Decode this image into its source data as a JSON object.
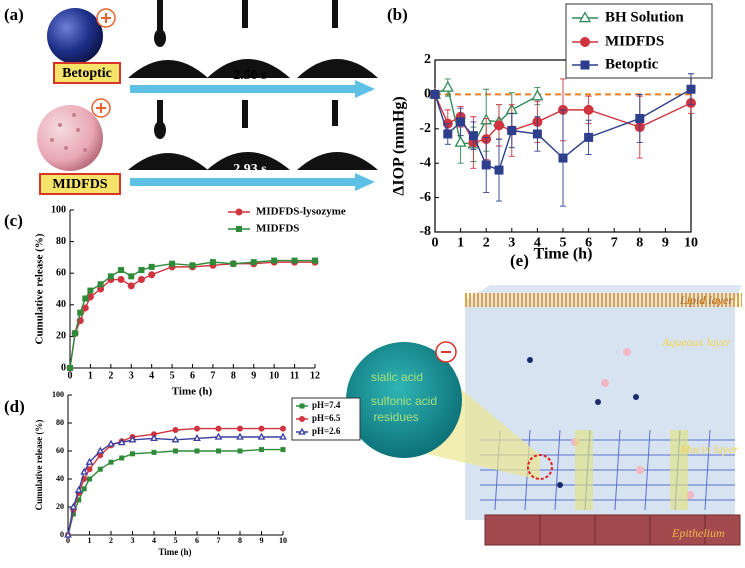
{
  "panels": {
    "a": {
      "label": "(a)",
      "drug_1": "Betoptic",
      "time_1": "2.50 s",
      "drug_2": "MIDFDS",
      "time_2": "2.93 s"
    },
    "e": {
      "label": "(e)",
      "lipid": "Lipid layer",
      "aqueous": "Aqueous layer",
      "mucin": "Mucin layer",
      "epithelium": "Epithelium",
      "circle_1": "sialic acid",
      "circle_2": "sulfonic acid",
      "circle_3": "residues"
    }
  },
  "chart_data": [
    {
      "type": "line",
      "panel": "(b)",
      "x_label": "Time (h)",
      "y_label": "ΔIOP (mmHg)",
      "axes_box": true,
      "xlim": [
        0,
        10
      ],
      "ylim": [
        -8,
        2
      ],
      "xticks": [
        0,
        1,
        2,
        3,
        4,
        5,
        6,
        7,
        8,
        9,
        10
      ],
      "yticks": [
        -8,
        -6,
        -4,
        -2,
        0,
        2
      ],
      "reference_line": {
        "value": 0,
        "color": "#ee7d22"
      },
      "series": [
        {
          "name": "BH Solution",
          "color": "#2e8b57",
          "marker": "triangle",
          "x": [
            0,
            0.5,
            1,
            1.5,
            2,
            2.5,
            3,
            4
          ],
          "values": [
            0,
            0.4,
            -2.8,
            -2.9,
            -1.5,
            -1.6,
            -0.9,
            -0.1
          ],
          "errors": [
            0.2,
            0.5,
            1.2,
            1.0,
            1.8,
            1.0,
            1.0,
            0.5
          ]
        },
        {
          "name": "MIDFDS",
          "color": "#d0343f",
          "marker": "circle",
          "x": [
            0,
            0.5,
            1,
            1.5,
            2,
            2.5,
            3,
            4,
            5,
            6,
            8,
            10
          ],
          "values": [
            0,
            -1.7,
            -1.3,
            -2.8,
            -2.6,
            -1.8,
            -2.1,
            -1.6,
            -0.9,
            -0.9,
            -1.9,
            -0.5
          ],
          "errors": [
            0.2,
            0.8,
            0.6,
            1.5,
            1.2,
            1.2,
            1.5,
            1.2,
            1.8,
            0.8,
            1.8,
            0.6
          ]
        },
        {
          "name": "Betoptic",
          "color": "#2d3f8c",
          "marker": "square",
          "x": [
            0,
            0.5,
            1,
            1.5,
            2,
            2.5,
            3,
            4,
            5,
            6,
            8,
            10
          ],
          "values": [
            0,
            -2.3,
            -1.6,
            -2.4,
            -4.1,
            -4.4,
            -2.1,
            -2.3,
            -3.7,
            -2.5,
            -1.4,
            0.3
          ],
          "errors": [
            0.2,
            0.6,
            0.8,
            0.8,
            1.6,
            1.8,
            1.0,
            1.0,
            2.8,
            1.0,
            1.4,
            0.9
          ]
        }
      ]
    },
    {
      "type": "line",
      "panel": "(c)",
      "x_label": "Time (h)",
      "y_label": "Cumulative release (%)",
      "axes_box": false,
      "xlim": [
        0,
        12
      ],
      "ylim": [
        0,
        100
      ],
      "xticks": [
        0,
        1,
        2,
        3,
        4,
        5,
        6,
        7,
        8,
        9,
        10,
        11,
        12
      ],
      "yticks": [
        0,
        20,
        40,
        60,
        80,
        100
      ],
      "series": [
        {
          "name": "MIDFDS-lysozyme",
          "color": "#d0343f",
          "marker": "circle",
          "x": [
            0,
            0.25,
            0.5,
            0.75,
            1,
            1.5,
            2,
            2.5,
            3,
            3.5,
            4,
            5,
            6,
            7,
            8,
            9,
            10,
            11,
            12
          ],
          "values": [
            0,
            22,
            30,
            38,
            45,
            50,
            56,
            56,
            52,
            56,
            59,
            64,
            64,
            65,
            66,
            66,
            67,
            67,
            67
          ]
        },
        {
          "name": "MIDFDS",
          "color": "#2e8b3a",
          "marker": "square",
          "x": [
            0,
            0.25,
            0.5,
            0.75,
            1,
            1.5,
            2,
            2.5,
            3,
            3.5,
            4,
            5,
            6,
            7,
            8,
            9,
            10,
            11,
            12
          ],
          "values": [
            0,
            22,
            35,
            44,
            49,
            53,
            58,
            62,
            58,
            62,
            64,
            66,
            65,
            67,
            66,
            67,
            68,
            68,
            68
          ]
        }
      ]
    },
    {
      "type": "line",
      "panel": "(d)",
      "x_label": "Time (h)",
      "y_label": "Cumulative release (%)",
      "axes_box": false,
      "xlim": [
        0,
        10
      ],
      "ylim": [
        0,
        100
      ],
      "xticks": [
        0,
        1,
        2,
        3,
        4,
        5,
        6,
        7,
        8,
        9,
        10
      ],
      "yticks": [
        0,
        20,
        40,
        60,
        80,
        100
      ],
      "series": [
        {
          "name": "pH=7.4",
          "color": "#2e8b3a",
          "marker": "square",
          "x": [
            0,
            0.25,
            0.5,
            0.75,
            1,
            1.5,
            2,
            2.5,
            3,
            4,
            5,
            6,
            7,
            8,
            9,
            10
          ],
          "values": [
            0,
            15,
            25,
            33,
            40,
            47,
            52,
            55,
            58,
            59,
            60,
            60,
            60,
            60,
            61,
            61
          ]
        },
        {
          "name": "pH=6.5",
          "color": "#d0343f",
          "marker": "circle",
          "x": [
            0,
            0.25,
            0.5,
            0.75,
            1,
            1.5,
            2,
            2.5,
            3,
            4,
            5,
            6,
            7,
            8,
            9,
            10
          ],
          "values": [
            0,
            18,
            30,
            40,
            47,
            57,
            64,
            67,
            70,
            72,
            75,
            76,
            76,
            76,
            76,
            76
          ]
        },
        {
          "name": "pH=2.6",
          "color": "#3a3fa0",
          "marker": "triangle",
          "x": [
            0,
            0.25,
            0.5,
            0.75,
            1,
            1.5,
            2,
            2.5,
            3,
            4,
            5,
            6,
            7,
            8,
            9,
            10
          ],
          "values": [
            0,
            20,
            32,
            45,
            52,
            60,
            65,
            66,
            68,
            69,
            68,
            69,
            70,
            70,
            70,
            70
          ]
        }
      ]
    }
  ]
}
